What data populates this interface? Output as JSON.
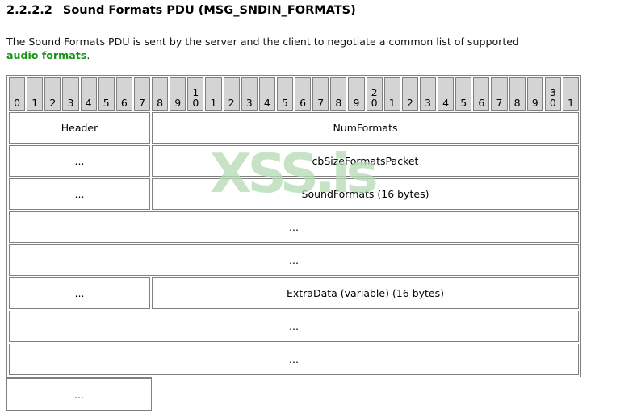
{
  "page": {
    "heading_number": "2.2.2.2",
    "heading_title": "Sound Formats PDU (MSG_SNDIN_FORMATS)",
    "paragraph_line1": "The Sound Formats PDU is sent by the server and the client to negotiate a common list of supported",
    "link_text": "audio formats",
    "paragraph_suffix": "."
  },
  "watermark": {
    "text": "XSS.is",
    "color": "#b7dcb7"
  },
  "colors": {
    "link_green": "#169416",
    "header_cell_bg": "#d4d4d4",
    "border": "#808080"
  },
  "table": {
    "bit_headers": [
      "0",
      "1",
      "2",
      "3",
      "4",
      "5",
      "6",
      "7",
      "8",
      "9",
      "1|0",
      "1",
      "2",
      "3",
      "4",
      "5",
      "6",
      "7",
      "8",
      "9",
      "2|0",
      "1",
      "2",
      "3",
      "4",
      "5",
      "6",
      "7",
      "8",
      "9",
      "3|0",
      "1"
    ],
    "rows": [
      {
        "cells": [
          {
            "span": 8,
            "label": "Header"
          },
          {
            "span": 24,
            "label": "NumFormats"
          }
        ]
      },
      {
        "cells": [
          {
            "span": 8,
            "label": "..."
          },
          {
            "span": 24,
            "label": "cbSizeFormatsPacket"
          }
        ]
      },
      {
        "cells": [
          {
            "span": 8,
            "label": "..."
          },
          {
            "span": 24,
            "label": "SoundFormats (16 bytes)"
          }
        ]
      },
      {
        "cells": [
          {
            "span": 32,
            "label": "..."
          }
        ]
      },
      {
        "cells": [
          {
            "span": 32,
            "label": "..."
          }
        ]
      },
      {
        "cells": [
          {
            "span": 8,
            "label": "..."
          },
          {
            "span": 24,
            "label": "ExtraData (variable) (16 bytes)"
          }
        ]
      },
      {
        "cells": [
          {
            "span": 32,
            "label": "..."
          }
        ]
      },
      {
        "cells": [
          {
            "span": 32,
            "label": "..."
          }
        ]
      }
    ],
    "overflow_cell": {
      "span": 8,
      "label": "..."
    }
  }
}
